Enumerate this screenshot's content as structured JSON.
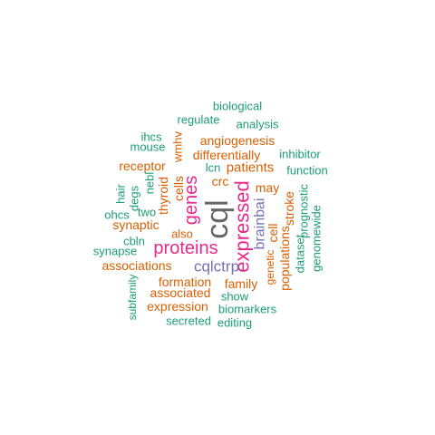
{
  "colors": {
    "teal": "#1b9e77",
    "orange": "#d95f02",
    "purple": "#7570b3",
    "magenta": "#e7298a",
    "gray": "#666666"
  },
  "words": [
    {
      "text": "cql",
      "color": "gray"
    },
    {
      "text": "expressed",
      "color": "magenta"
    },
    {
      "text": "genes",
      "color": "magenta"
    },
    {
      "text": "proteins",
      "color": "magenta"
    },
    {
      "text": "cqlctrp",
      "color": "purple"
    },
    {
      "text": "brainbai",
      "color": "purple"
    },
    {
      "text": "patients",
      "color": "orange"
    },
    {
      "text": "angiogenesis",
      "color": "orange"
    },
    {
      "text": "differentially",
      "color": "orange"
    },
    {
      "text": "cells",
      "color": "orange"
    },
    {
      "text": "thyroid",
      "color": "orange"
    },
    {
      "text": "wmhv",
      "color": "orange"
    },
    {
      "text": "crc",
      "color": "orange"
    },
    {
      "text": "may",
      "color": "orange"
    },
    {
      "text": "cell",
      "color": "orange"
    },
    {
      "text": "stroke",
      "color": "orange"
    },
    {
      "text": "populations",
      "color": "orange"
    },
    {
      "text": "genetic",
      "color": "orange"
    },
    {
      "text": "receptor",
      "color": "orange"
    },
    {
      "text": "synaptic",
      "color": "orange"
    },
    {
      "text": "also",
      "color": "orange"
    },
    {
      "text": "associations",
      "color": "orange"
    },
    {
      "text": "formation",
      "color": "orange"
    },
    {
      "text": "associated",
      "color": "orange"
    },
    {
      "text": "family",
      "color": "orange"
    },
    {
      "text": "expression",
      "color": "orange"
    },
    {
      "text": "biological",
      "color": "teal"
    },
    {
      "text": "regulate",
      "color": "teal"
    },
    {
      "text": "analysis",
      "color": "teal"
    },
    {
      "text": "ihcs",
      "color": "teal"
    },
    {
      "text": "mouse",
      "color": "teal"
    },
    {
      "text": "inhibitor",
      "color": "teal"
    },
    {
      "text": "function",
      "color": "teal"
    },
    {
      "text": "lcn",
      "color": "teal"
    },
    {
      "text": "nebl",
      "color": "teal"
    },
    {
      "text": "degs",
      "color": "teal"
    },
    {
      "text": "hair",
      "color": "teal"
    },
    {
      "text": "ohcs",
      "color": "teal"
    },
    {
      "text": "two",
      "color": "teal"
    },
    {
      "text": "prognostic",
      "color": "teal"
    },
    {
      "text": "dataset",
      "color": "teal"
    },
    {
      "text": "genomewide",
      "color": "teal"
    },
    {
      "text": "cbln",
      "color": "teal"
    },
    {
      "text": "synapse",
      "color": "teal"
    },
    {
      "text": "subfamily",
      "color": "teal"
    },
    {
      "text": "show",
      "color": "teal"
    },
    {
      "text": "biomarkers",
      "color": "teal"
    },
    {
      "text": "secreted",
      "color": "teal"
    },
    {
      "text": "editing",
      "color": "teal"
    }
  ]
}
